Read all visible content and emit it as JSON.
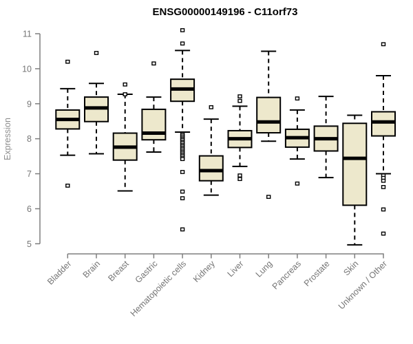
{
  "header": {
    "title": "ENSG00000149196 - C11orf73"
  },
  "chart_data": {
    "type": "boxplot",
    "title": "ENSG00000149196 - C11orf73",
    "xlabel": "",
    "ylabel": "Expression",
    "ylim": [
      5,
      11
    ],
    "yticks": [
      5,
      6,
      7,
      8,
      9,
      10,
      11
    ],
    "grid": false,
    "legend": false,
    "colors": {
      "box_fill": "#ede8cc",
      "box_stroke": "#000000",
      "median": "#000000",
      "whisker": "#000000",
      "outlier_fill": "#ffffff",
      "axis": "#7e7e7e",
      "tick_label": "#757575",
      "title": "#000000"
    },
    "categories": [
      "Bladder",
      "Brain",
      "Breast",
      "Gastric",
      "Hematopoietic cells",
      "Kidney",
      "Liver",
      "Lung",
      "Pancreas",
      "Prostate",
      "Skin",
      "Unknown / Other"
    ],
    "series": [
      {
        "category": "Bladder",
        "whisker_low": 7.53,
        "q1": 8.28,
        "median": 8.55,
        "q3": 8.82,
        "whisker_high": 9.43,
        "outliers": [
          10.2,
          6.66
        ]
      },
      {
        "category": "Brain",
        "whisker_low": 7.57,
        "q1": 8.49,
        "median": 8.88,
        "q3": 9.19,
        "whisker_high": 9.58,
        "outliers": [
          10.45
        ]
      },
      {
        "category": "Breast",
        "whisker_low": 6.51,
        "q1": 7.39,
        "median": 7.76,
        "q3": 8.16,
        "whisker_high": 9.27,
        "outliers": [
          9.55,
          9.27
        ]
      },
      {
        "category": "Gastric",
        "whisker_low": 7.62,
        "q1": 7.97,
        "median": 8.16,
        "q3": 8.84,
        "whisker_high": 9.19,
        "outliers": [
          10.15
        ]
      },
      {
        "category": "Hematopoietic cells",
        "whisker_low": 8.19,
        "q1": 9.07,
        "median": 9.42,
        "q3": 9.7,
        "whisker_high": 10.52,
        "outliers": [
          11.1,
          10.72,
          8.13,
          8.09,
          8.04,
          8.0,
          7.96,
          7.91,
          7.87,
          7.82,
          7.78,
          7.73,
          7.69,
          7.64,
          7.6,
          7.55,
          7.51,
          7.46,
          7.42,
          7.05,
          6.49,
          6.3,
          5.41
        ]
      },
      {
        "category": "Kidney",
        "whisker_low": 6.39,
        "q1": 6.8,
        "median": 7.09,
        "q3": 7.51,
        "whisker_high": 8.56,
        "outliers": [
          8.9
        ]
      },
      {
        "category": "Liver",
        "whisker_low": 7.21,
        "q1": 7.75,
        "median": 8.0,
        "q3": 8.23,
        "whisker_high": 8.93,
        "outliers": [
          9.21,
          9.08,
          6.95,
          6.85
        ]
      },
      {
        "category": "Lung",
        "whisker_low": 7.93,
        "q1": 8.17,
        "median": 8.48,
        "q3": 9.18,
        "whisker_high": 10.5,
        "outliers": [
          6.34
        ]
      },
      {
        "category": "Pancreas",
        "whisker_low": 7.42,
        "q1": 7.76,
        "median": 8.03,
        "q3": 8.27,
        "whisker_high": 8.82,
        "outliers": [
          9.15,
          6.72
        ]
      },
      {
        "category": "Prostate",
        "whisker_low": 6.89,
        "q1": 7.65,
        "median": 8.0,
        "q3": 8.36,
        "whisker_high": 9.21,
        "outliers": []
      },
      {
        "category": "Skin",
        "whisker_low": 4.97,
        "q1": 6.1,
        "median": 7.44,
        "q3": 8.44,
        "whisker_high": 8.67,
        "outliers": []
      },
      {
        "category": "Unknown / Other",
        "whisker_low": 7.0,
        "q1": 8.08,
        "median": 8.48,
        "q3": 8.77,
        "whisker_high": 9.8,
        "outliers": [
          10.7,
          6.95,
          6.88,
          6.8,
          6.62,
          5.98,
          5.29
        ]
      }
    ]
  }
}
